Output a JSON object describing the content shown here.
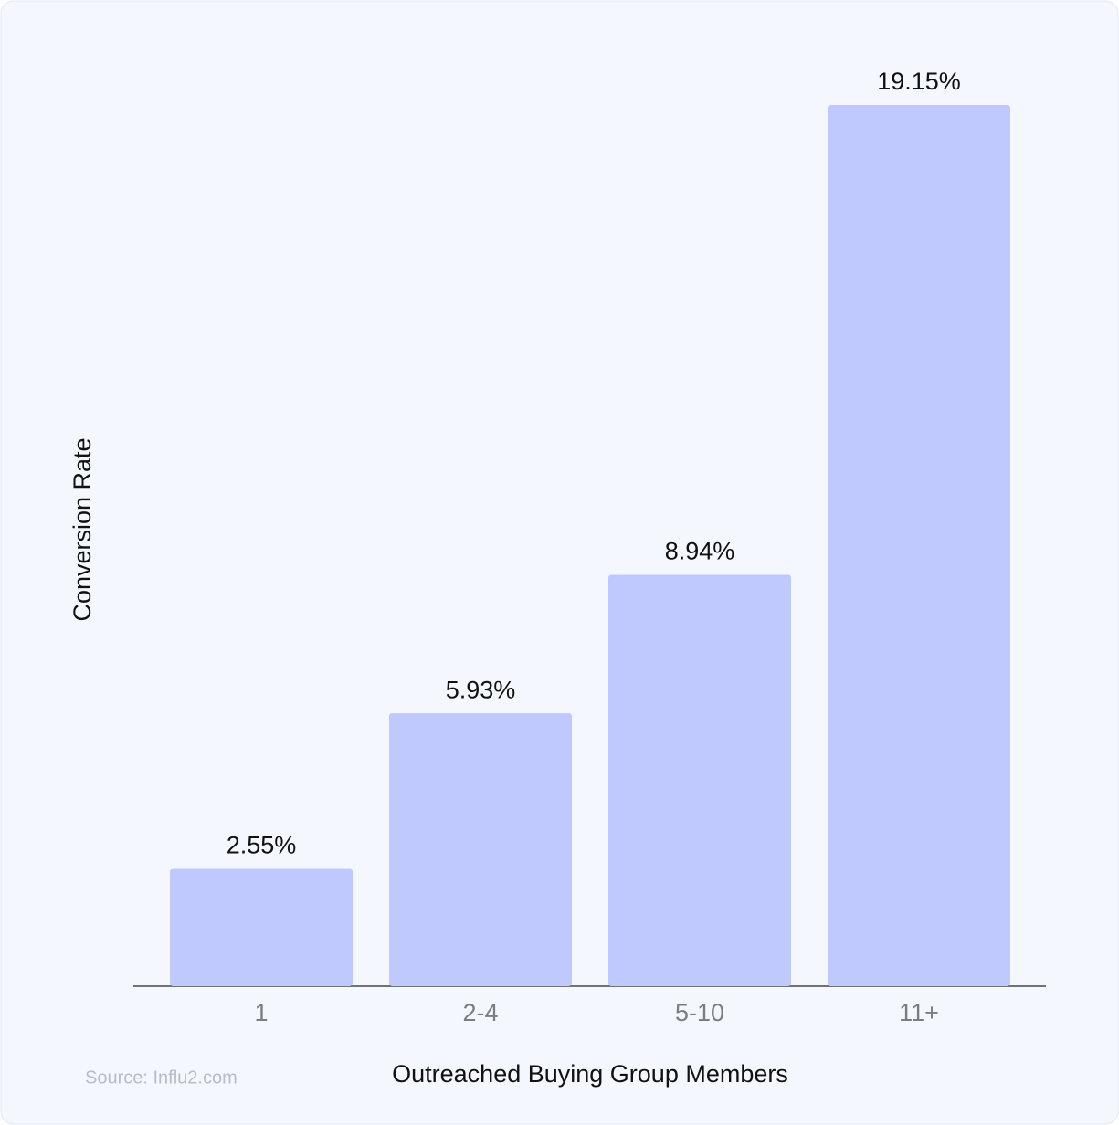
{
  "chart_data": {
    "type": "bar",
    "x_label": "Outreached Buying Group Members",
    "y_label": "Conversion Rate",
    "source": "Source: Influ2.com",
    "categories": [
      "1",
      "2-4",
      "5-10",
      "11+"
    ],
    "values": [
      2.55,
      5.93,
      8.94,
      19.15
    ],
    "value_labels": [
      "2.55%",
      "5.93%",
      "8.94%",
      "19.15%"
    ],
    "color": "#c0c9fd",
    "grid": false
  }
}
